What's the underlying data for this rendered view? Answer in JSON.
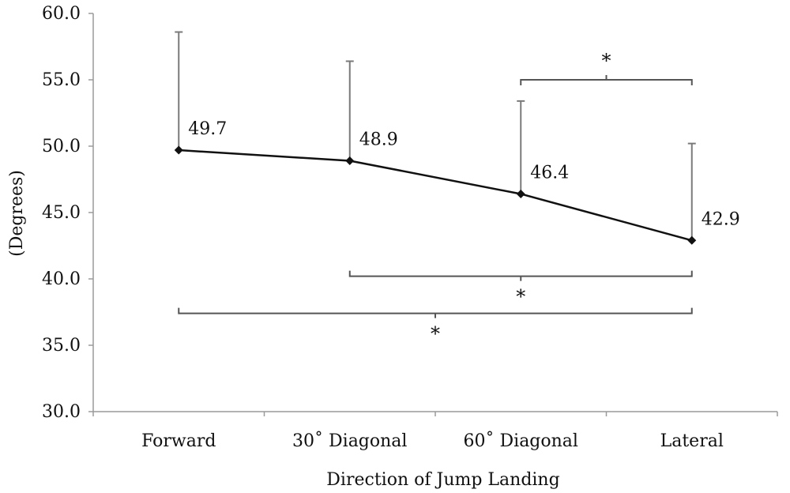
{
  "chart_data": {
    "type": "line",
    "title": "",
    "xlabel": "Direction of Jump Landing",
    "ylabel": "(Degrees)",
    "ylim": [
      30,
      60
    ],
    "yticks": [
      "30.0",
      "35.0",
      "40.0",
      "45.0",
      "50.0",
      "55.0",
      "60.0"
    ],
    "categories": [
      "Forward",
      "30˚ Diagonal",
      "60˚ Diagonal",
      "Lateral"
    ],
    "series": [
      {
        "values": [
          49.7,
          48.9,
          46.4,
          42.9
        ],
        "data_labels": [
          "49.7",
          "48.9",
          "46.4",
          "42.9"
        ],
        "error_upper": [
          58.6,
          56.4,
          53.4,
          50.2
        ]
      }
    ],
    "significance": [
      {
        "from": "60˚ Diagonal",
        "to": "Lateral",
        "value": 55.0,
        "label": "*",
        "label_side": "above"
      },
      {
        "from": "30˚ Diagonal",
        "to": "Lateral",
        "value": 40.2,
        "label": "*",
        "label_side": "below"
      },
      {
        "from": "Forward",
        "to": "Lateral",
        "value": 37.4,
        "label": "*",
        "label_side": "below"
      }
    ],
    "grid": false,
    "legend": "none",
    "colors": {
      "line": "#111111",
      "error": "#7a7a7a",
      "axis": "#9a9a9a",
      "bracket": "#555555"
    }
  }
}
